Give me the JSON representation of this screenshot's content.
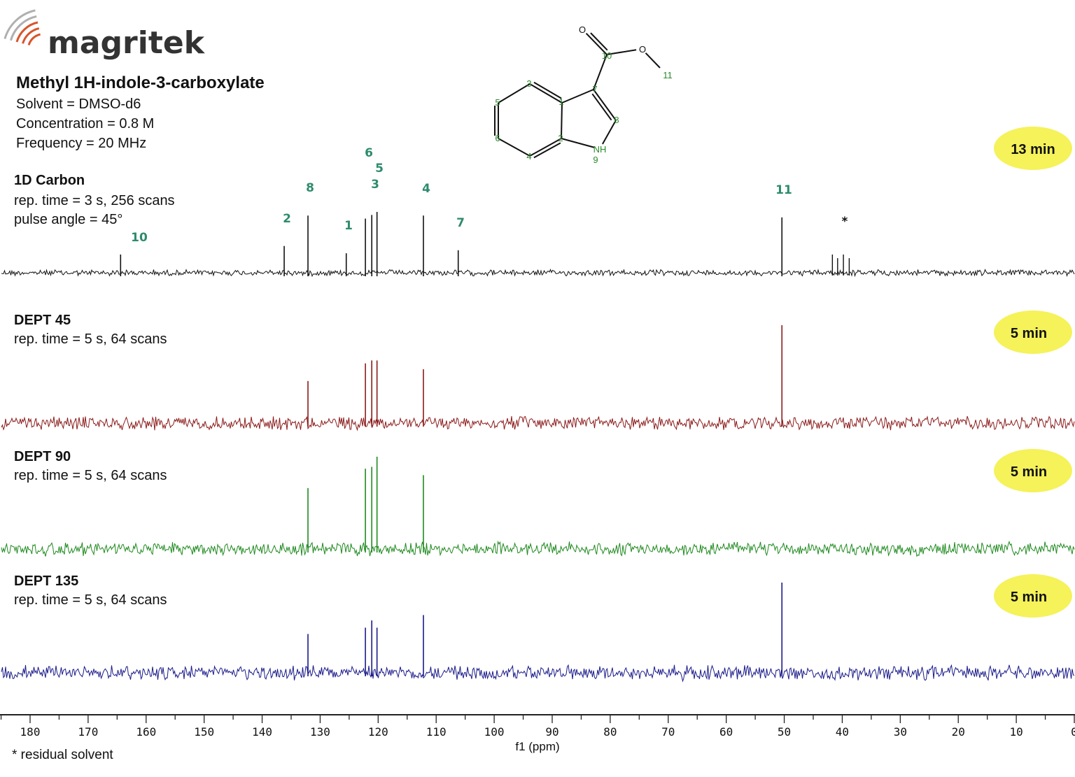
{
  "logo": {
    "text": "magritek",
    "colors": {
      "arcs": "#d9542a",
      "arcs_grey": "#b0b0b0",
      "text": "#333333"
    }
  },
  "header": {
    "title": "Methyl 1H-indole-3-carboxylate",
    "lines": [
      "Solvent = DMSO-d6",
      "Concentration = 0.8 M",
      "Frequency = 20 MHz"
    ]
  },
  "molecule": {
    "atoms": {
      "O_carbonyl": "O",
      "O_ester": "O",
      "N": "NH"
    },
    "numbers": [
      "1",
      "2",
      "3",
      "4",
      "5",
      "6",
      "7",
      "8",
      "9",
      "10",
      "11"
    ]
  },
  "colors": {
    "peak_label": "#2e8b6e",
    "badge": "#f5f25a",
    "atom_label": "#2a8a2a"
  },
  "chart_data": {
    "type": "line",
    "xlabel": "f1 (ppm)",
    "xlim": [
      180,
      0
    ],
    "x_reversed": true,
    "xticks": [
      "180",
      "170",
      "160",
      "150",
      "140",
      "130",
      "120",
      "110",
      "100",
      "90",
      "80",
      "70",
      "60",
      "50",
      "40",
      "30",
      "20",
      "10",
      "0"
    ],
    "footnote": "* residual solvent",
    "spectra": [
      {
        "name": "1D Carbon",
        "params": [
          "rep. time = 3 s, 256 scans",
          "pulse angle = 45°"
        ],
        "time": "13 min",
        "color": "#111111",
        "peaks": [
          {
            "label": "10",
            "ppm": 164.4,
            "intensity": 0.3
          },
          {
            "label": "2",
            "ppm": 136.2,
            "intensity": 0.44
          },
          {
            "label": "8",
            "ppm": 132.1,
            "intensity": 0.94
          },
          {
            "label": "1",
            "ppm": 125.5,
            "intensity": 0.32
          },
          {
            "label": "3",
            "ppm": 122.2,
            "intensity": 0.89
          },
          {
            "label": "5",
            "ppm": 121.1,
            "intensity": 0.95
          },
          {
            "label": "6",
            "ppm": 120.2,
            "intensity": 1.0
          },
          {
            "label": "4",
            "ppm": 112.2,
            "intensity": 0.94
          },
          {
            "label": "7",
            "ppm": 106.2,
            "intensity": 0.37
          },
          {
            "label": "11",
            "ppm": 50.4,
            "intensity": 0.91
          },
          {
            "label": "*",
            "ppm": 40.0,
            "intensity": 0.3
          }
        ]
      },
      {
        "name": "DEPT 45",
        "params": [
          "rep. time = 5 s, 64 scans"
        ],
        "time": "5 min",
        "color": "#8b1a1a",
        "peaks": [
          {
            "ppm": 132.1,
            "intensity": 0.43
          },
          {
            "ppm": 122.2,
            "intensity": 0.61
          },
          {
            "ppm": 121.1,
            "intensity": 0.64
          },
          {
            "ppm": 120.2,
            "intensity": 0.64
          },
          {
            "ppm": 112.2,
            "intensity": 0.55
          },
          {
            "ppm": 50.4,
            "intensity": 1.0
          }
        ]
      },
      {
        "name": "DEPT 90",
        "params": [
          "rep. time = 5 s, 64 scans"
        ],
        "time": "5 min",
        "color": "#1f8a1f",
        "peaks": [
          {
            "ppm": 132.1,
            "intensity": 0.66
          },
          {
            "ppm": 122.2,
            "intensity": 0.87
          },
          {
            "ppm": 121.1,
            "intensity": 0.89
          },
          {
            "ppm": 120.2,
            "intensity": 1.0
          },
          {
            "ppm": 112.2,
            "intensity": 0.8
          }
        ]
      },
      {
        "name": "DEPT 135",
        "params": [
          "rep. time = 5 s, 64 scans"
        ],
        "time": "5 min",
        "color": "#1a1a8a",
        "peaks": [
          {
            "ppm": 132.1,
            "intensity": 0.43
          },
          {
            "ppm": 122.2,
            "intensity": 0.5
          },
          {
            "ppm": 121.1,
            "intensity": 0.58
          },
          {
            "ppm": 120.2,
            "intensity": 0.5
          },
          {
            "ppm": 112.2,
            "intensity": 0.64
          },
          {
            "ppm": 50.4,
            "intensity": 1.0
          }
        ]
      }
    ]
  }
}
